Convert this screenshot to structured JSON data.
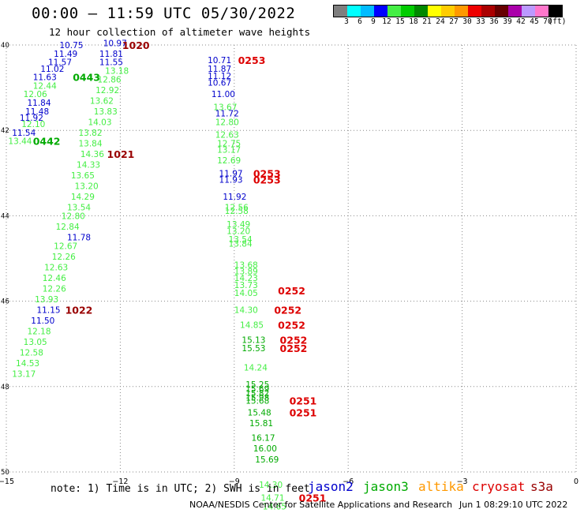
{
  "title": "00:00 – 11:59 UTC 05/30/2022",
  "subtitle": "12 hour collection of altimeter wave heights",
  "colorbar": {
    "colors": [
      "#7f7f7f",
      "#00ffff",
      "#00bbff",
      "#0000ff",
      "#44ee44",
      "#00cc00",
      "#008800",
      "#ffff00",
      "#ffcc00",
      "#ff9900",
      "#ee0000",
      "#aa0000",
      "#660000",
      "#aa00aa",
      "#bb99ff",
      "#ff77cc",
      "#000000"
    ],
    "labels": [
      "3",
      "6",
      "9",
      "12",
      "15",
      "18",
      "21",
      "24",
      "27",
      "30",
      "33",
      "36",
      "39",
      "42",
      "45",
      "70"
    ],
    "unit": "(ft)"
  },
  "axes": {
    "x_ticks": [
      "−15",
      "−12",
      "−9",
      "−6",
      "−3",
      "0"
    ],
    "x_values": [
      -15,
      -12,
      -9,
      -6,
      -3,
      0
    ],
    "y_ticks": [
      "40",
      "42",
      "44",
      "46",
      "48",
      "50"
    ],
    "y_values": [
      40,
      42,
      44,
      46,
      48,
      50
    ],
    "x_range": [
      -15,
      0
    ],
    "y_range": [
      40,
      50
    ],
    "grid": true
  },
  "note": "note: 1) Time is in UTC; 2) SWH is in feet",
  "legend": [
    {
      "name": "jason2",
      "color": "#0000cc"
    },
    {
      "name": "jason3",
      "color": "#00aa00"
    },
    {
      "name": "altika",
      "color": "#ff9900"
    },
    {
      "name": "cryosat",
      "color": "#dd0000"
    },
    {
      "name": "s3a",
      "color": "#990000"
    }
  ],
  "footer": {
    "credit": "NOAA/NESDIS Center for Satellite Applications and Research",
    "timestamp": "Jun  1 08:29:10 UTC 2022"
  },
  "chart_data": {
    "type": "scatter",
    "wave_heights": [
      {
        "lon": -13.6,
        "lat": 40.0,
        "v": "10.75",
        "c": "#0000cc"
      },
      {
        "lon": -12.45,
        "lat": 39.95,
        "v": "10.97",
        "c": "#0000cc"
      },
      {
        "lon": -13.75,
        "lat": 40.2,
        "v": "11.49",
        "c": "#0000cc"
      },
      {
        "lon": -12.55,
        "lat": 40.2,
        "v": "11.81",
        "c": "#0000cc"
      },
      {
        "lon": -13.9,
        "lat": 40.4,
        "v": "11.57",
        "c": "#0000cc"
      },
      {
        "lon": -12.55,
        "lat": 40.4,
        "v": "11.55",
        "c": "#0000cc"
      },
      {
        "lon": -14.1,
        "lat": 40.55,
        "v": "11.02",
        "c": "#0000cc"
      },
      {
        "lon": -12.4,
        "lat": 40.6,
        "v": "13.18",
        "c": "#44ee44"
      },
      {
        "lon": -14.3,
        "lat": 40.75,
        "v": "11.63",
        "c": "#0000cc"
      },
      {
        "lon": -12.6,
        "lat": 40.8,
        "v": "12.86",
        "c": "#44ee44"
      },
      {
        "lon": -14.3,
        "lat": 40.95,
        "v": "12.44",
        "c": "#44ee44"
      },
      {
        "lon": -14.55,
        "lat": 41.15,
        "v": "12.06",
        "c": "#44ee44"
      },
      {
        "lon": -12.65,
        "lat": 41.05,
        "v": "12.92",
        "c": "#44ee44"
      },
      {
        "lon": -14.45,
        "lat": 41.35,
        "v": "11.84",
        "c": "#0000cc"
      },
      {
        "lon": -12.8,
        "lat": 41.3,
        "v": "13.62",
        "c": "#44ee44"
      },
      {
        "lon": -14.5,
        "lat": 41.55,
        "v": "11.48",
        "c": "#0000cc"
      },
      {
        "lon": -12.7,
        "lat": 41.55,
        "v": "13.83",
        "c": "#44ee44"
      },
      {
        "lon": -14.65,
        "lat": 41.7,
        "v": "11.92",
        "c": "#0000cc"
      },
      {
        "lon": -12.85,
        "lat": 41.8,
        "v": "14.03",
        "c": "#44ee44"
      },
      {
        "lon": -14.6,
        "lat": 41.85,
        "v": "12.10",
        "c": "#44ee44"
      },
      {
        "lon": -14.85,
        "lat": 42.05,
        "v": "11.54",
        "c": "#0000cc"
      },
      {
        "lon": -13.1,
        "lat": 42.05,
        "v": "13.82",
        "c": "#44ee44"
      },
      {
        "lon": -14.95,
        "lat": 42.25,
        "v": "13.44",
        "c": "#44ee44"
      },
      {
        "lon": -13.1,
        "lat": 42.3,
        "v": "13.84",
        "c": "#44ee44"
      },
      {
        "lon": -13.05,
        "lat": 42.55,
        "v": "14.36",
        "c": "#44ee44"
      },
      {
        "lon": -13.15,
        "lat": 42.8,
        "v": "14.33",
        "c": "#44ee44"
      },
      {
        "lon": -13.3,
        "lat": 43.05,
        "v": "13.65",
        "c": "#44ee44"
      },
      {
        "lon": -13.2,
        "lat": 43.3,
        "v": "13.20",
        "c": "#44ee44"
      },
      {
        "lon": -13.3,
        "lat": 43.55,
        "v": "14.29",
        "c": "#44ee44"
      },
      {
        "lon": -13.4,
        "lat": 43.8,
        "v": "13.54",
        "c": "#44ee44"
      },
      {
        "lon": -13.55,
        "lat": 44.0,
        "v": "12.80",
        "c": "#44ee44"
      },
      {
        "lon": -13.7,
        "lat": 44.25,
        "v": "12.84",
        "c": "#44ee44"
      },
      {
        "lon": -13.4,
        "lat": 44.5,
        "v": "11.78",
        "c": "#0000cc"
      },
      {
        "lon": -13.75,
        "lat": 44.7,
        "v": "12.67",
        "c": "#44ee44"
      },
      {
        "lon": -13.8,
        "lat": 44.95,
        "v": "12.26",
        "c": "#44ee44"
      },
      {
        "lon": -14.0,
        "lat": 45.2,
        "v": "12.63",
        "c": "#44ee44"
      },
      {
        "lon": -14.05,
        "lat": 45.45,
        "v": "12.46",
        "c": "#44ee44"
      },
      {
        "lon": -14.05,
        "lat": 45.7,
        "v": "12.26",
        "c": "#44ee44"
      },
      {
        "lon": -14.25,
        "lat": 45.95,
        "v": "13.93",
        "c": "#44ee44"
      },
      {
        "lon": -14.2,
        "lat": 46.2,
        "v": "11.15",
        "c": "#0000cc"
      },
      {
        "lon": -14.35,
        "lat": 46.45,
        "v": "11.50",
        "c": "#0000cc"
      },
      {
        "lon": -14.45,
        "lat": 46.7,
        "v": "12.18",
        "c": "#44ee44"
      },
      {
        "lon": -14.55,
        "lat": 46.95,
        "v": "13.05",
        "c": "#44ee44"
      },
      {
        "lon": -14.65,
        "lat": 47.2,
        "v": "12.58",
        "c": "#44ee44"
      },
      {
        "lon": -14.75,
        "lat": 47.45,
        "v": "14.53",
        "c": "#44ee44"
      },
      {
        "lon": -14.85,
        "lat": 47.7,
        "v": "13.17",
        "c": "#44ee44"
      },
      {
        "lon": -9.7,
        "lat": 40.35,
        "v": "10.71",
        "c": "#0000cc"
      },
      {
        "lon": -9.7,
        "lat": 40.55,
        "v": "11.87",
        "c": "#0000cc"
      },
      {
        "lon": -9.7,
        "lat": 40.72,
        "v": "11.12",
        "c": "#0000cc"
      },
      {
        "lon": -9.7,
        "lat": 40.88,
        "v": "10.67",
        "c": "#0000cc"
      },
      {
        "lon": -9.6,
        "lat": 41.15,
        "v": "11.00",
        "c": "#0000cc"
      },
      {
        "lon": -9.55,
        "lat": 41.45,
        "v": "13.67",
        "c": "#44ee44"
      },
      {
        "lon": -9.5,
        "lat": 41.6,
        "v": "11.72",
        "c": "#0000cc"
      },
      {
        "lon": -9.5,
        "lat": 41.8,
        "v": "12.80",
        "c": "#44ee44"
      },
      {
        "lon": -9.5,
        "lat": 42.1,
        "v": "12.63",
        "c": "#44ee44"
      },
      {
        "lon": -9.45,
        "lat": 42.3,
        "v": "12.75",
        "c": "#44ee44"
      },
      {
        "lon": -9.45,
        "lat": 42.45,
        "v": "13.17",
        "c": "#44ee44"
      },
      {
        "lon": -9.45,
        "lat": 42.7,
        "v": "12.69",
        "c": "#44ee44"
      },
      {
        "lon": -9.4,
        "lat": 43.0,
        "v": "11.97",
        "c": "#0000cc"
      },
      {
        "lon": -9.4,
        "lat": 43.15,
        "v": "11.93",
        "c": "#0000cc"
      },
      {
        "lon": -9.3,
        "lat": 43.55,
        "v": "11.92",
        "c": "#0000cc"
      },
      {
        "lon": -9.25,
        "lat": 43.8,
        "v": "12.56",
        "c": "#44ee44"
      },
      {
        "lon": -9.25,
        "lat": 43.88,
        "v": "12.58",
        "c": "#44ee44"
      },
      {
        "lon": -9.2,
        "lat": 44.2,
        "v": "13.49",
        "c": "#44ee44"
      },
      {
        "lon": -9.2,
        "lat": 44.35,
        "v": "13.20",
        "c": "#44ee44"
      },
      {
        "lon": -9.15,
        "lat": 44.55,
        "v": "13.54",
        "c": "#44ee44"
      },
      {
        "lon": -9.15,
        "lat": 44.65,
        "v": "13.84",
        "c": "#44ee44"
      },
      {
        "lon": -9.0,
        "lat": 45.15,
        "v": "13.68",
        "c": "#44ee44"
      },
      {
        "lon": -9.0,
        "lat": 45.3,
        "v": "13.89",
        "c": "#44ee44"
      },
      {
        "lon": -9.0,
        "lat": 45.45,
        "v": "14.23",
        "c": "#44ee44"
      },
      {
        "lon": -9.0,
        "lat": 45.62,
        "v": "13.73",
        "c": "#44ee44"
      },
      {
        "lon": -9.0,
        "lat": 45.8,
        "v": "14.05",
        "c": "#44ee44"
      },
      {
        "lon": -9.0,
        "lat": 46.2,
        "v": "14.30",
        "c": "#44ee44"
      },
      {
        "lon": -8.85,
        "lat": 46.55,
        "v": "14.85",
        "c": "#44ee44"
      },
      {
        "lon": -8.8,
        "lat": 46.9,
        "v": "15.13",
        "c": "#00aa00"
      },
      {
        "lon": -8.8,
        "lat": 47.1,
        "v": "15.53",
        "c": "#00aa00"
      },
      {
        "lon": -8.75,
        "lat": 47.55,
        "v": "14.24",
        "c": "#44ee44"
      },
      {
        "lon": -8.7,
        "lat": 47.95,
        "v": "15.25",
        "c": "#00aa00"
      },
      {
        "lon": -8.7,
        "lat": 48.05,
        "v": "15.69",
        "c": "#00aa00"
      },
      {
        "lon": -8.7,
        "lat": 48.15,
        "v": "15.82",
        "c": "#00aa00"
      },
      {
        "lon": -8.7,
        "lat": 48.25,
        "v": "15.98",
        "c": "#00aa00"
      },
      {
        "lon": -8.7,
        "lat": 48.33,
        "v": "15.68",
        "c": "#00aa00"
      },
      {
        "lon": -8.65,
        "lat": 48.6,
        "v": "15.48",
        "c": "#00aa00"
      },
      {
        "lon": -8.6,
        "lat": 48.85,
        "v": "15.81",
        "c": "#00aa00"
      },
      {
        "lon": -8.55,
        "lat": 49.2,
        "v": "16.17",
        "c": "#00aa00"
      },
      {
        "lon": -8.5,
        "lat": 49.45,
        "v": "16.00",
        "c": "#00aa00"
      },
      {
        "lon": -8.45,
        "lat": 49.7,
        "v": "15.69",
        "c": "#00aa00"
      },
      {
        "lon": -8.35,
        "lat": 50.3,
        "v": "14.30",
        "c": "#44ee44"
      },
      {
        "lon": -8.3,
        "lat": 50.6,
        "v": "14.71",
        "c": "#44ee44"
      },
      {
        "lon": -8.25,
        "lat": 50.8,
        "v": "14.65",
        "c": "#44ee44"
      }
    ],
    "pass_times": [
      {
        "lon": -11.95,
        "lat": 40.0,
        "t": "1020",
        "c": "#990000"
      },
      {
        "lon": -8.9,
        "lat": 40.35,
        "t": "0253",
        "c": "#dd0000"
      },
      {
        "lon": -13.25,
        "lat": 40.75,
        "t": "0443",
        "c": "#00aa00"
      },
      {
        "lon": -14.3,
        "lat": 42.25,
        "t": "0442",
        "c": "#00aa00"
      },
      {
        "lon": -12.35,
        "lat": 42.55,
        "t": "1021",
        "c": "#990000"
      },
      {
        "lon": -8.5,
        "lat": 43.0,
        "t": "0253",
        "c": "#dd0000"
      },
      {
        "lon": -8.5,
        "lat": 43.15,
        "t": "0253",
        "c": "#dd0000"
      },
      {
        "lon": -7.85,
        "lat": 45.75,
        "t": "0252",
        "c": "#dd0000"
      },
      {
        "lon": -13.45,
        "lat": 46.2,
        "t": "1022",
        "c": "#990000"
      },
      {
        "lon": -7.95,
        "lat": 46.2,
        "t": "0252",
        "c": "#dd0000"
      },
      {
        "lon": -7.85,
        "lat": 46.55,
        "t": "0252",
        "c": "#dd0000"
      },
      {
        "lon": -7.8,
        "lat": 46.9,
        "t": "0252",
        "c": "#dd0000"
      },
      {
        "lon": -7.8,
        "lat": 47.1,
        "t": "0252",
        "c": "#dd0000"
      },
      {
        "lon": -7.55,
        "lat": 48.33,
        "t": "0251",
        "c": "#dd0000"
      },
      {
        "lon": -7.55,
        "lat": 48.6,
        "t": "0251",
        "c": "#dd0000"
      },
      {
        "lon": -7.3,
        "lat": 50.6,
        "t": "0251",
        "c": "#dd0000"
      }
    ]
  }
}
